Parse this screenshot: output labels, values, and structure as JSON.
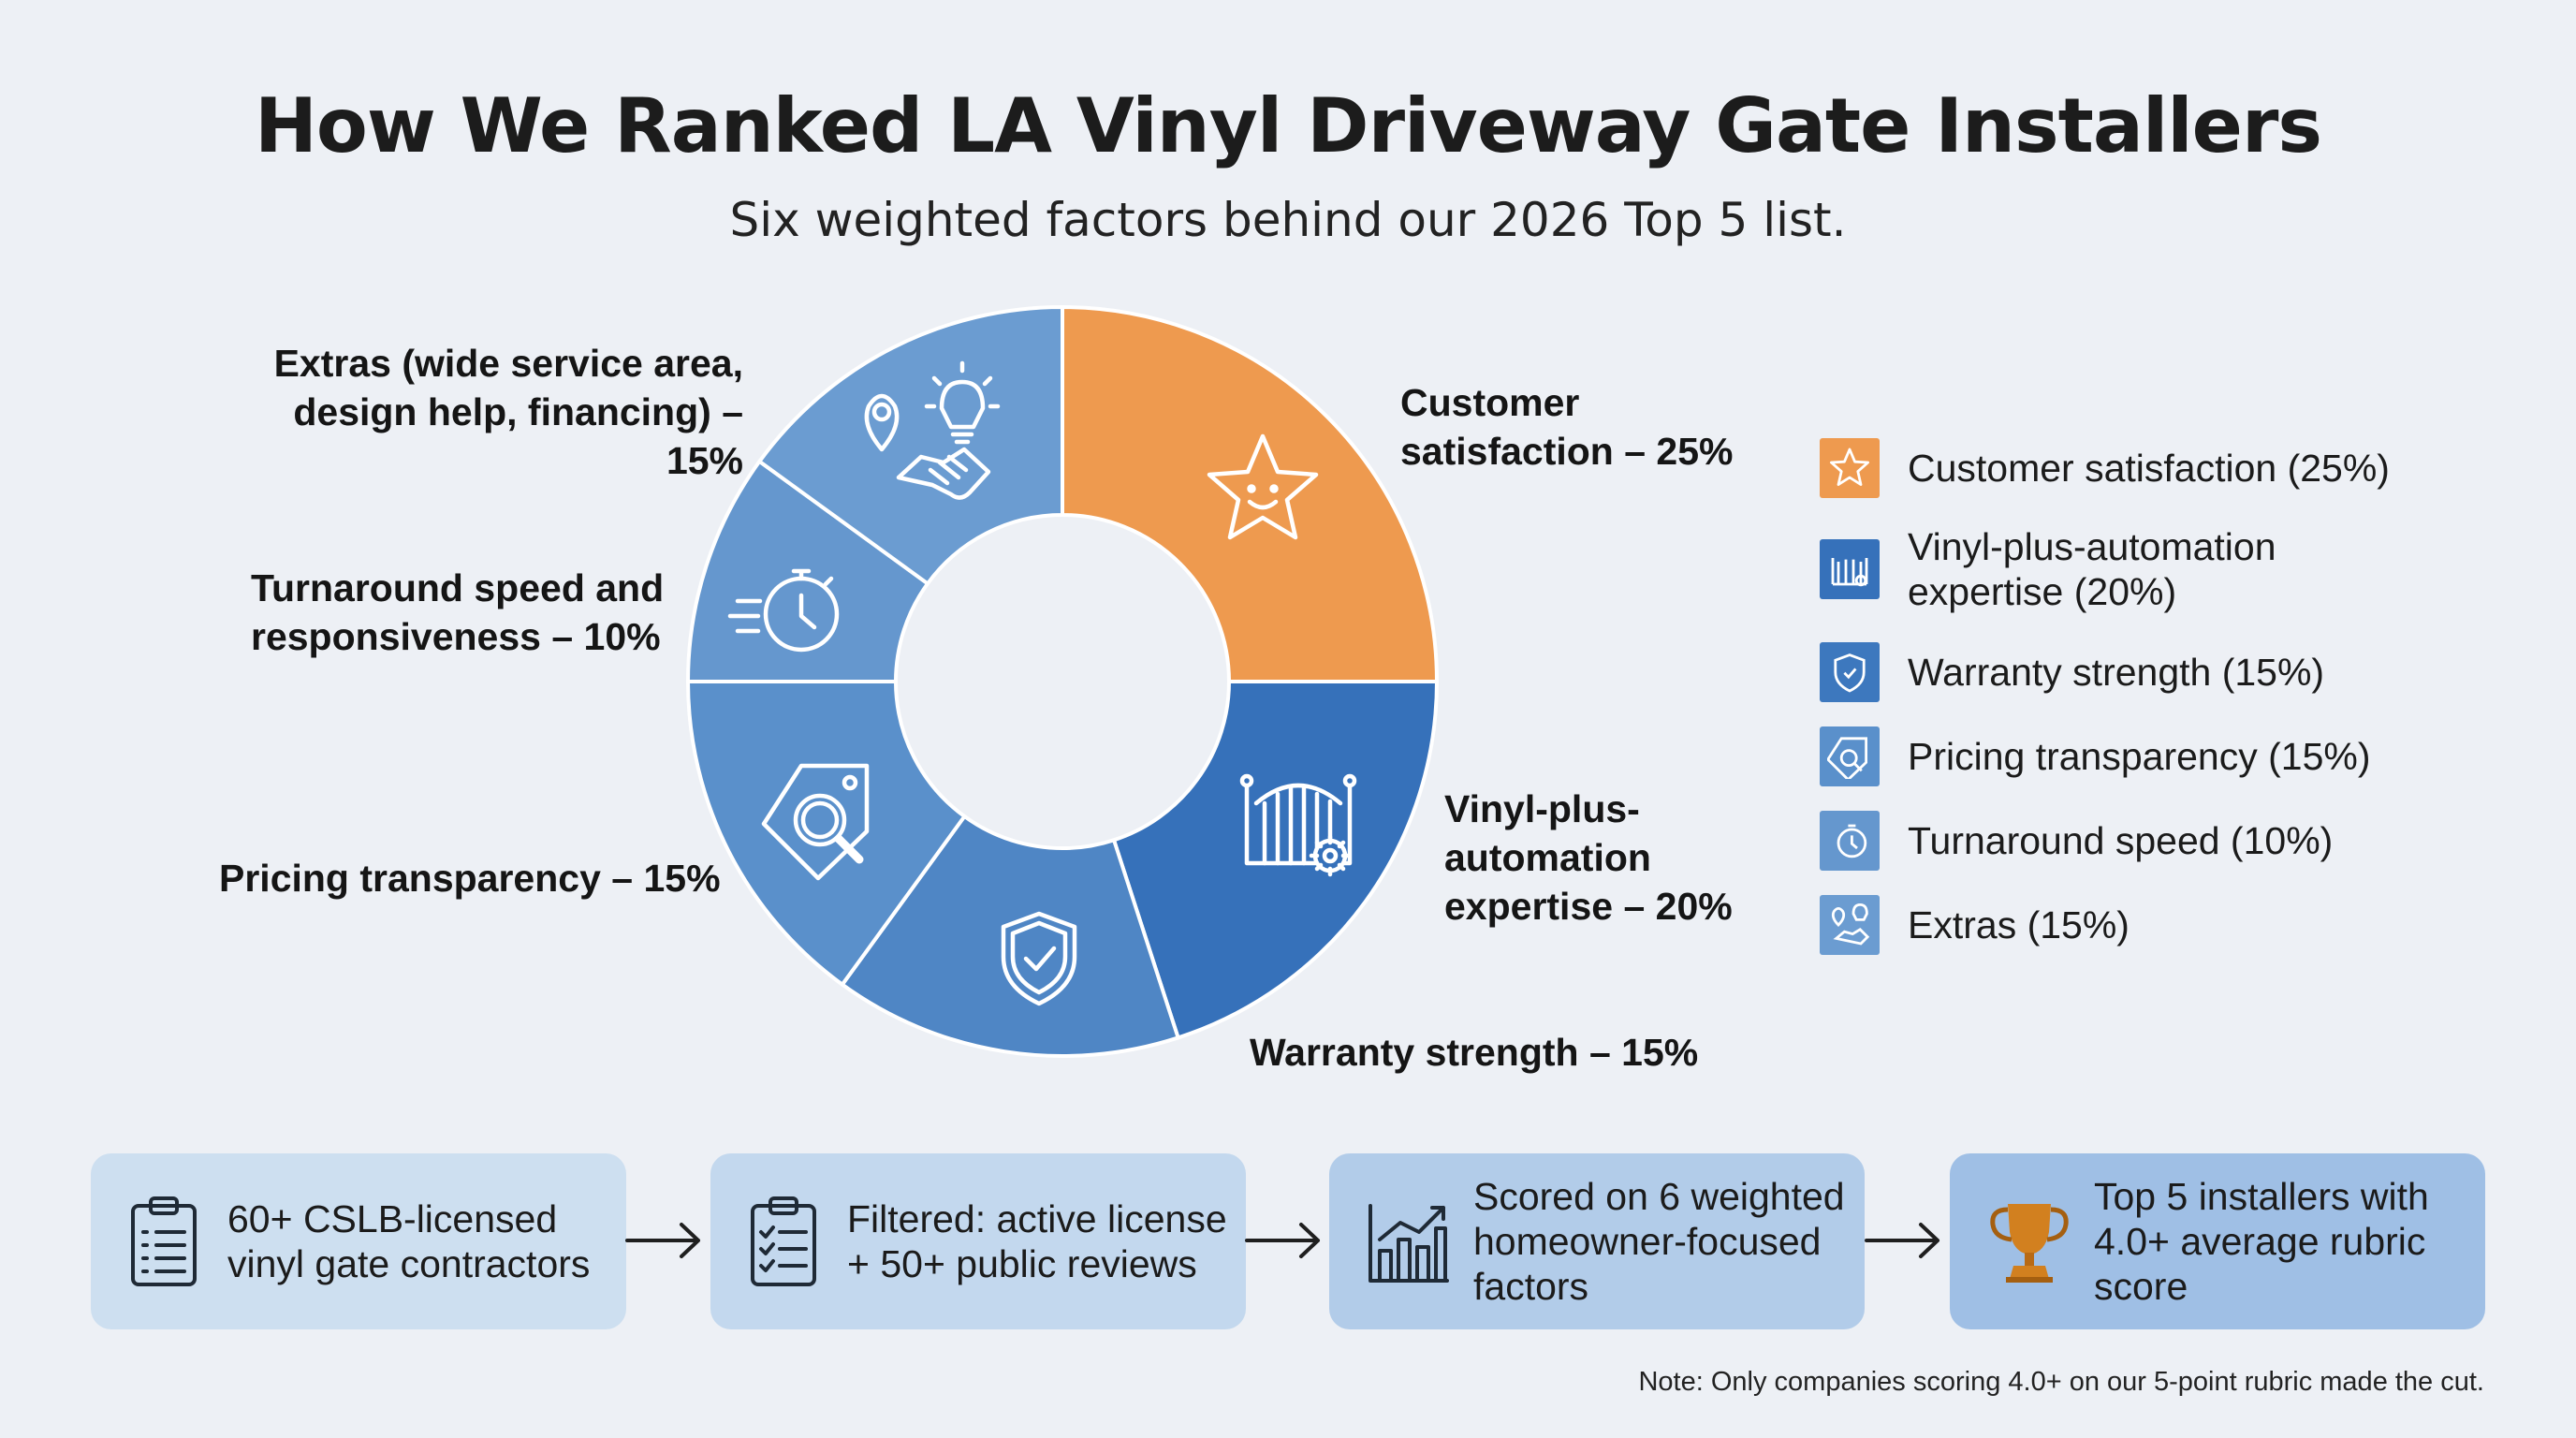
{
  "title": "How We Ranked LA Vinyl Driveway Gate Installers",
  "subtitle": "Six weighted factors behind our 2026 Top 5 list.",
  "chart_data": {
    "type": "pie",
    "donut": true,
    "slices": [
      {
        "label": "Customer satisfaction – 25%",
        "legend": "Customer satisfaction (25%)",
        "value": 25,
        "color": "#ee9a4f",
        "icon": "star-face-icon"
      },
      {
        "label": "Vinyl-plus-automation expertise – 20%",
        "legend": "Vinyl-plus-automation expertise (20%)",
        "value": 20,
        "color": "#3671ba",
        "icon": "gate-gear-icon"
      },
      {
        "label": "Warranty strength – 15%",
        "legend": "Warranty strength (15%)",
        "value": 15,
        "color": "#4f86c5",
        "icon": "shield-check-icon"
      },
      {
        "label": "Pricing transparency – 15%",
        "legend": "Pricing transparency (15%)",
        "value": 15,
        "color": "#5a90cb",
        "icon": "price-tag-search-icon"
      },
      {
        "label": "Turnaround speed and responsiveness – 10%",
        "legend": "Turnaround speed (10%)",
        "value": 10,
        "color": "#6597ce",
        "icon": "stopwatch-icon"
      },
      {
        "label": "Extras (wide service area, design help, financing) – 15%",
        "legend": "Extras (15%)",
        "value": 15,
        "color": "#6b9cd1",
        "icon": "pin-bulb-handshake-icon"
      }
    ]
  },
  "labels": {
    "customer": [
      "Customer",
      "satisfaction – 25%"
    ],
    "vinyl": [
      "Vinyl-plus-",
      "automation",
      "expertise – 20%"
    ],
    "warranty": [
      "Warranty strength – 15%"
    ],
    "pricing": [
      "Pricing transparency – 15%"
    ],
    "turnaround": [
      "Turnaround speed and",
      "responsiveness – 10%"
    ],
    "extras": [
      "Extras (wide service area,",
      "design help, financing) – 15%"
    ]
  },
  "legend": [
    {
      "lines": [
        "Customer satisfaction (25%)"
      ],
      "color": "#ee9a4f",
      "icon": "star-face-icon"
    },
    {
      "lines": [
        "Vinyl-plus-automation",
        "expertise (20%)"
      ],
      "color": "#3671ba",
      "icon": "gate-gear-icon"
    },
    {
      "lines": [
        "Warranty strength (15%)"
      ],
      "color": "#3d78be",
      "icon": "shield-check-icon"
    },
    {
      "lines": [
        "Pricing transparency (15%)"
      ],
      "color": "#5a90cb",
      "icon": "price-tag-search-icon"
    },
    {
      "lines": [
        "Turnaround speed (10%)"
      ],
      "color": "#6597ce",
      "icon": "stopwatch-icon"
    },
    {
      "lines": [
        "Extras (15%)"
      ],
      "color": "#6b9cd1",
      "icon": "pin-bulb-handshake-icon"
    }
  ],
  "flow": [
    {
      "lines": [
        "60+ CSLB-licensed",
        "vinyl gate contractors"
      ],
      "color": "#cddff0",
      "icon": "clipboard-list-icon"
    },
    {
      "lines": [
        "Filtered: active license",
        "+ 50+ public reviews"
      ],
      "color": "#c3d8ee",
      "icon": "clipboard-check-icon"
    },
    {
      "lines": [
        "Scored on 6 weighted",
        "homeowner-focused",
        "factors"
      ],
      "color": "#b2cce9",
      "icon": "bar-chart-icon"
    },
    {
      "lines": [
        "Top 5 installers with",
        "4.0+ average rubric",
        "score"
      ],
      "color": "#9fbfe5",
      "icon": "trophy-icon"
    }
  ],
  "note": "Note: Only companies scoring 4.0+ on our 5-point rubric made the cut."
}
